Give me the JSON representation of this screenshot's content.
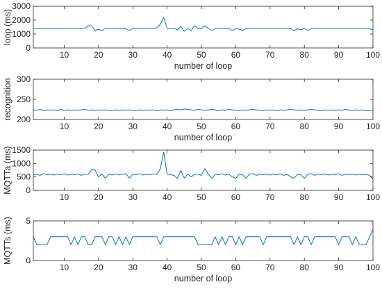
{
  "chart_data": [
    {
      "type": "line",
      "title": "",
      "xlabel": "number of loop",
      "ylabel": "loop (ms)",
      "xlim": [
        1,
        100
      ],
      "ylim": [
        0,
        3000
      ],
      "xticks": [
        10,
        20,
        30,
        40,
        50,
        60,
        70,
        80,
        90,
        100
      ],
      "xtick_labels": [
        "10",
        "20",
        "30",
        "40",
        "50",
        "60",
        "70",
        "80",
        "90",
        "100"
      ],
      "yticks": [
        0,
        1000,
        2000,
        3000
      ],
      "ytick_labels": [
        "0",
        "1000",
        "2000",
        "3000"
      ],
      "color": "#0072BD",
      "grid": false,
      "x": [
        1,
        2,
        3,
        4,
        5,
        6,
        7,
        8,
        9,
        10,
        11,
        12,
        13,
        14,
        15,
        16,
        17,
        18,
        19,
        20,
        21,
        22,
        23,
        24,
        25,
        26,
        27,
        28,
        29,
        30,
        31,
        32,
        33,
        34,
        35,
        36,
        37,
        38,
        39,
        40,
        41,
        42,
        43,
        44,
        45,
        46,
        47,
        48,
        49,
        50,
        51,
        52,
        53,
        54,
        55,
        56,
        57,
        58,
        59,
        60,
        61,
        62,
        63,
        64,
        65,
        66,
        67,
        68,
        69,
        70,
        71,
        72,
        73,
        74,
        75,
        76,
        77,
        78,
        79,
        80,
        81,
        82,
        83,
        84,
        85,
        86,
        87,
        88,
        89,
        90,
        91,
        92,
        93,
        94,
        95,
        96,
        97,
        98,
        99,
        100
      ],
      "y": [
        1400,
        1380,
        1400,
        1390,
        1380,
        1400,
        1390,
        1400,
        1380,
        1400,
        1390,
        1400,
        1380,
        1400,
        1390,
        1400,
        1600,
        1600,
        1250,
        1350,
        1250,
        1400,
        1380,
        1400,
        1390,
        1400,
        1380,
        1400,
        1250,
        1400,
        1390,
        1400,
        1380,
        1400,
        1390,
        1400,
        1450,
        1700,
        2200,
        1400,
        1390,
        1400,
        1300,
        1550,
        1200,
        1400,
        1250,
        1600,
        1400,
        1380,
        1600,
        1400,
        1250,
        1400,
        1390,
        1400,
        1380,
        1400,
        1250,
        1400,
        1350,
        1250,
        1400,
        1390,
        1400,
        1380,
        1400,
        1390,
        1380,
        1400,
        1390,
        1400,
        1380,
        1400,
        1390,
        1400,
        1250,
        1380,
        1300,
        1400,
        1250,
        1400,
        1390,
        1400,
        1380,
        1400,
        1390,
        1400,
        1380,
        1400,
        1390,
        1400,
        1380,
        1400,
        1390,
        1400,
        1380,
        1400,
        1390,
        1300
      ]
    },
    {
      "type": "line",
      "title": "",
      "xlabel": "number of loop",
      "ylabel": "recognition",
      "xlim": [
        1,
        100
      ],
      "ylim": [
        200,
        300
      ],
      "xticks": [
        10,
        20,
        30,
        40,
        50,
        60,
        70,
        80,
        90,
        100
      ],
      "xtick_labels": [
        "10",
        "20",
        "30",
        "40",
        "50",
        "60",
        "70",
        "80",
        "90",
        "100"
      ],
      "yticks": [
        200,
        250,
        300
      ],
      "ytick_labels": [
        "200",
        "250",
        "300"
      ],
      "color": "#0072BD",
      "grid": false,
      "x": [
        1,
        2,
        3,
        4,
        5,
        6,
        7,
        8,
        9,
        10,
        11,
        12,
        13,
        14,
        15,
        16,
        17,
        18,
        19,
        20,
        21,
        22,
        23,
        24,
        25,
        26,
        27,
        28,
        29,
        30,
        31,
        32,
        33,
        34,
        35,
        36,
        37,
        38,
        39,
        40,
        41,
        42,
        43,
        44,
        45,
        46,
        47,
        48,
        49,
        50,
        51,
        52,
        53,
        54,
        55,
        56,
        57,
        58,
        59,
        60,
        61,
        62,
        63,
        64,
        65,
        66,
        67,
        68,
        69,
        70,
        71,
        72,
        73,
        74,
        75,
        76,
        77,
        78,
        79,
        80,
        81,
        82,
        83,
        84,
        85,
        86,
        87,
        88,
        89,
        90,
        91,
        92,
        93,
        94,
        95,
        96,
        97,
        98,
        99,
        100
      ],
      "y": [
        224,
        223,
        225,
        222,
        224,
        223,
        224,
        222,
        225,
        223,
        224,
        222,
        224,
        223,
        224,
        225,
        223,
        224,
        222,
        224,
        223,
        224,
        222,
        223,
        224,
        222,
        224,
        223,
        224,
        222,
        223,
        224,
        222,
        224,
        223,
        224,
        222,
        224,
        223,
        224,
        222,
        224,
        225,
        224,
        226,
        225,
        224,
        223,
        225,
        224,
        223,
        224,
        225,
        224,
        222,
        224,
        223,
        225,
        224,
        223,
        222,
        224,
        223,
        224,
        225,
        224,
        223,
        222,
        224,
        223,
        224,
        222,
        224,
        223,
        224,
        225,
        224,
        223,
        224,
        222,
        224,
        225,
        224,
        223,
        222,
        224,
        223,
        224,
        222,
        224,
        223,
        225,
        224,
        222,
        224,
        223,
        224,
        222,
        223,
        222
      ]
    },
    {
      "type": "line",
      "title": "",
      "xlabel": "",
      "ylabel": "MQTTa (ms)",
      "xlim": [
        1,
        100
      ],
      "ylim": [
        0,
        1500
      ],
      "xticks": [
        10,
        20,
        30,
        40,
        50,
        60,
        70,
        80,
        90,
        100
      ],
      "xtick_labels": [
        "10",
        "20",
        "30",
        "40",
        "50",
        "60",
        "70",
        "80",
        "90",
        "100"
      ],
      "yticks": [
        0,
        500,
        1000,
        1500
      ],
      "ytick_labels": [
        "0",
        "500",
        "1000",
        "1500"
      ],
      "color": "#0072BD",
      "grid": false,
      "x": [
        1,
        2,
        3,
        4,
        5,
        6,
        7,
        8,
        9,
        10,
        11,
        12,
        13,
        14,
        15,
        16,
        17,
        18,
        19,
        20,
        21,
        22,
        23,
        24,
        25,
        26,
        27,
        28,
        29,
        30,
        31,
        32,
        33,
        34,
        35,
        36,
        37,
        38,
        39,
        40,
        41,
        42,
        43,
        44,
        45,
        46,
        47,
        48,
        49,
        50,
        51,
        52,
        53,
        54,
        55,
        56,
        57,
        58,
        59,
        60,
        61,
        62,
        63,
        64,
        65,
        66,
        67,
        68,
        69,
        70,
        71,
        72,
        73,
        74,
        75,
        76,
        77,
        78,
        79,
        80,
        81,
        82,
        83,
        84,
        85,
        86,
        87,
        88,
        89,
        90,
        91,
        92,
        93,
        94,
        95,
        96,
        97,
        98,
        99,
        100
      ],
      "y": [
        580,
        600,
        560,
        620,
        580,
        600,
        570,
        610,
        580,
        620,
        570,
        600,
        580,
        610,
        560,
        600,
        600,
        780,
        760,
        500,
        600,
        450,
        600,
        570,
        610,
        580,
        600,
        620,
        460,
        600,
        580,
        620,
        570,
        600,
        580,
        610,
        590,
        800,
        1420,
        600,
        580,
        560,
        450,
        740,
        450,
        600,
        500,
        600,
        600,
        560,
        810,
        600,
        450,
        600,
        580,
        620,
        570,
        600,
        500,
        450,
        600,
        580,
        450,
        600,
        620,
        560,
        600,
        580,
        610,
        570,
        600,
        580,
        620,
        560,
        600,
        500,
        450,
        600,
        580,
        450,
        600,
        620,
        560,
        600,
        580,
        610,
        570,
        600,
        580,
        620,
        560,
        600,
        580,
        610,
        570,
        600,
        580,
        600,
        560,
        420
      ]
    },
    {
      "type": "line",
      "title": "",
      "xlabel": "number of loop",
      "ylabel": "MQTTs (ms)",
      "xlim": [
        1,
        100
      ],
      "ylim": [
        0,
        5
      ],
      "xticks": [
        10,
        20,
        30,
        40,
        50,
        60,
        70,
        80,
        90,
        100
      ],
      "xtick_labels": [
        "10",
        "20",
        "30",
        "40",
        "50",
        "60",
        "70",
        "80",
        "90",
        "100"
      ],
      "yticks": [
        0,
        5
      ],
      "ytick_labels": [
        "0",
        "5"
      ],
      "color": "#0072BD",
      "grid": false,
      "x": [
        1,
        2,
        3,
        4,
        5,
        6,
        7,
        8,
        9,
        10,
        11,
        12,
        13,
        14,
        15,
        16,
        17,
        18,
        19,
        20,
        21,
        22,
        23,
        24,
        25,
        26,
        27,
        28,
        29,
        30,
        31,
        32,
        33,
        34,
        35,
        36,
        37,
        38,
        39,
        40,
        41,
        42,
        43,
        44,
        45,
        46,
        47,
        48,
        49,
        50,
        51,
        52,
        53,
        54,
        55,
        56,
        57,
        58,
        59,
        60,
        61,
        62,
        63,
        64,
        65,
        66,
        67,
        68,
        69,
        70,
        71,
        72,
        73,
        74,
        75,
        76,
        77,
        78,
        79,
        80,
        81,
        82,
        83,
        84,
        85,
        86,
        87,
        88,
        89,
        90,
        91,
        92,
        93,
        94,
        95,
        96,
        97,
        98,
        99,
        100
      ],
      "y": [
        3,
        2,
        2,
        2,
        2,
        3,
        3,
        3,
        3,
        3,
        3,
        2,
        3,
        2,
        3,
        3,
        2,
        2,
        3,
        3,
        3,
        2,
        3,
        3,
        2,
        3,
        2,
        3,
        2,
        3,
        3,
        3,
        3,
        3,
        3,
        3,
        3,
        2,
        3,
        3,
        3,
        3,
        3,
        3,
        3,
        3,
        3,
        3,
        2,
        2,
        2,
        2,
        2,
        3,
        2,
        3,
        2,
        3,
        3,
        2,
        3,
        2,
        3,
        3,
        3,
        3,
        3,
        2,
        3,
        3,
        3,
        3,
        3,
        3,
        3,
        3,
        2,
        3,
        2,
        3,
        3,
        2,
        3,
        3,
        3,
        3,
        3,
        3,
        3,
        2,
        3,
        3,
        3,
        2,
        3,
        2,
        2,
        2,
        3,
        4
      ]
    }
  ]
}
